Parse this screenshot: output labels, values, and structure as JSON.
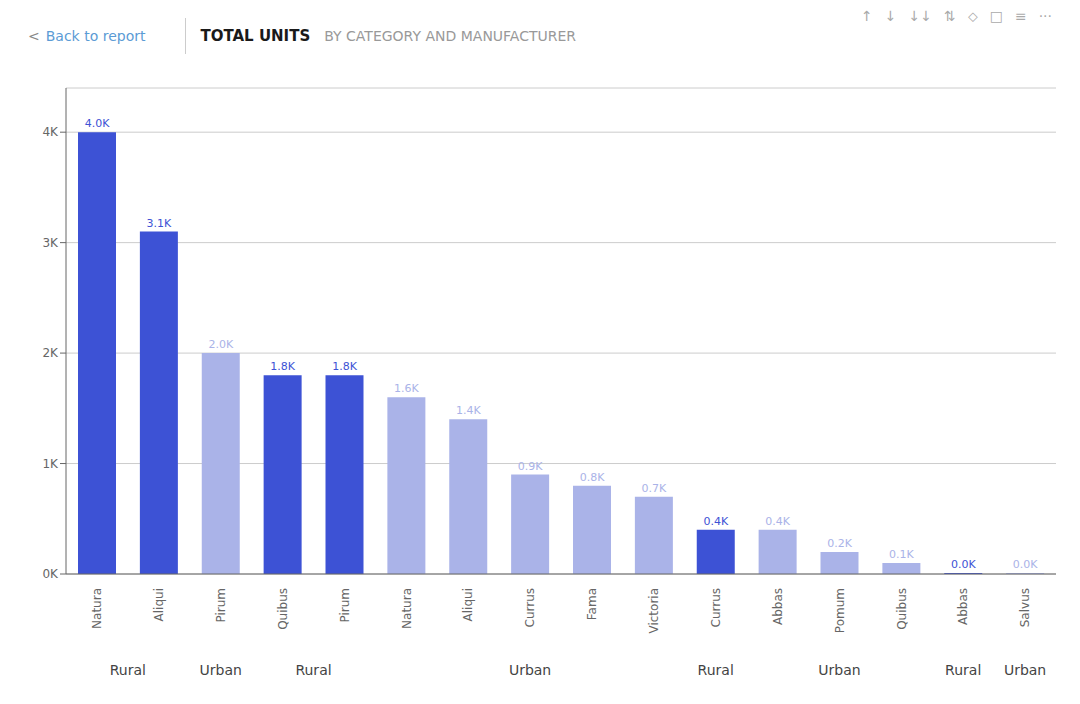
{
  "chart_data": {
    "type": "bar",
    "title": "TOTAL UNITS",
    "subtitle": "BY CATEGORY AND MANUFACTURER",
    "annotations": [
      "<",
      "Back to report",
      "↑",
      "↓",
      "↓↓",
      "⇅",
      "⬦",
      "□",
      "≡",
      "···"
    ],
    "categories": [
      "Natura",
      "Aliqui",
      "Pirum",
      "Quibus",
      "Pirum",
      "Natura",
      "Aliqui",
      "Currus",
      "Fama",
      "Victoria",
      "Currus",
      "Abbas",
      "Pomum",
      "Quibus",
      "Abbas",
      "Salvus"
    ],
    "values": [
      4000,
      3100,
      2000,
      1800,
      1800,
      1600,
      1400,
      900,
      800,
      700,
      400,
      400,
      200,
      100,
      10,
      10
    ],
    "value_labels": [
      "4.0K",
      "3.1K",
      "2.0K",
      "1.8K",
      "1.8K",
      "1.6K",
      "1.4K",
      "0.9K",
      "0.8K",
      "0.7K",
      "0.4K",
      "0.4K",
      "0.2K",
      "0.1K",
      "0.0K",
      "0.0K"
    ],
    "data_labels": true,
    "colors": [
      "#3d52d5",
      "#3d52d5",
      "#aab3e8",
      "#3d52d5",
      "#3d52d5",
      "#aab3e8",
      "#aab3e8",
      "#aab3e8",
      "#aab3e8",
      "#aab3e8",
      "#3d52d5",
      "#aab3e8",
      "#aab3e8",
      "#aab3e8",
      "#3d52d5",
      "#aab3e8"
    ],
    "groups": [
      {
        "text": "Rural",
        "start": 0,
        "end": 1
      },
      {
        "text": "Urban",
        "start": 2,
        "end": 2
      },
      {
        "text": "Rural",
        "start": 3,
        "end": 4
      },
      {
        "text": "Urban",
        "start": 5,
        "end": 9
      },
      {
        "text": "Rural",
        "start": 10,
        "end": 10
      },
      {
        "text": "Urban",
        "start": 11,
        "end": 13
      },
      {
        "text": "Rural",
        "start": 14,
        "end": 14
      },
      {
        "text": "Urban",
        "start": 15,
        "end": 15
      }
    ],
    "ylim": [
      0,
      4400
    ],
    "yticks": [
      {
        "value": 0,
        "label": "0K"
      },
      {
        "value": 1000,
        "label": "1K"
      },
      {
        "value": 2000,
        "label": "2K"
      },
      {
        "value": 3000,
        "label": "3K"
      },
      {
        "value": 4000,
        "label": "4K"
      }
    ],
    "grid": true
  }
}
